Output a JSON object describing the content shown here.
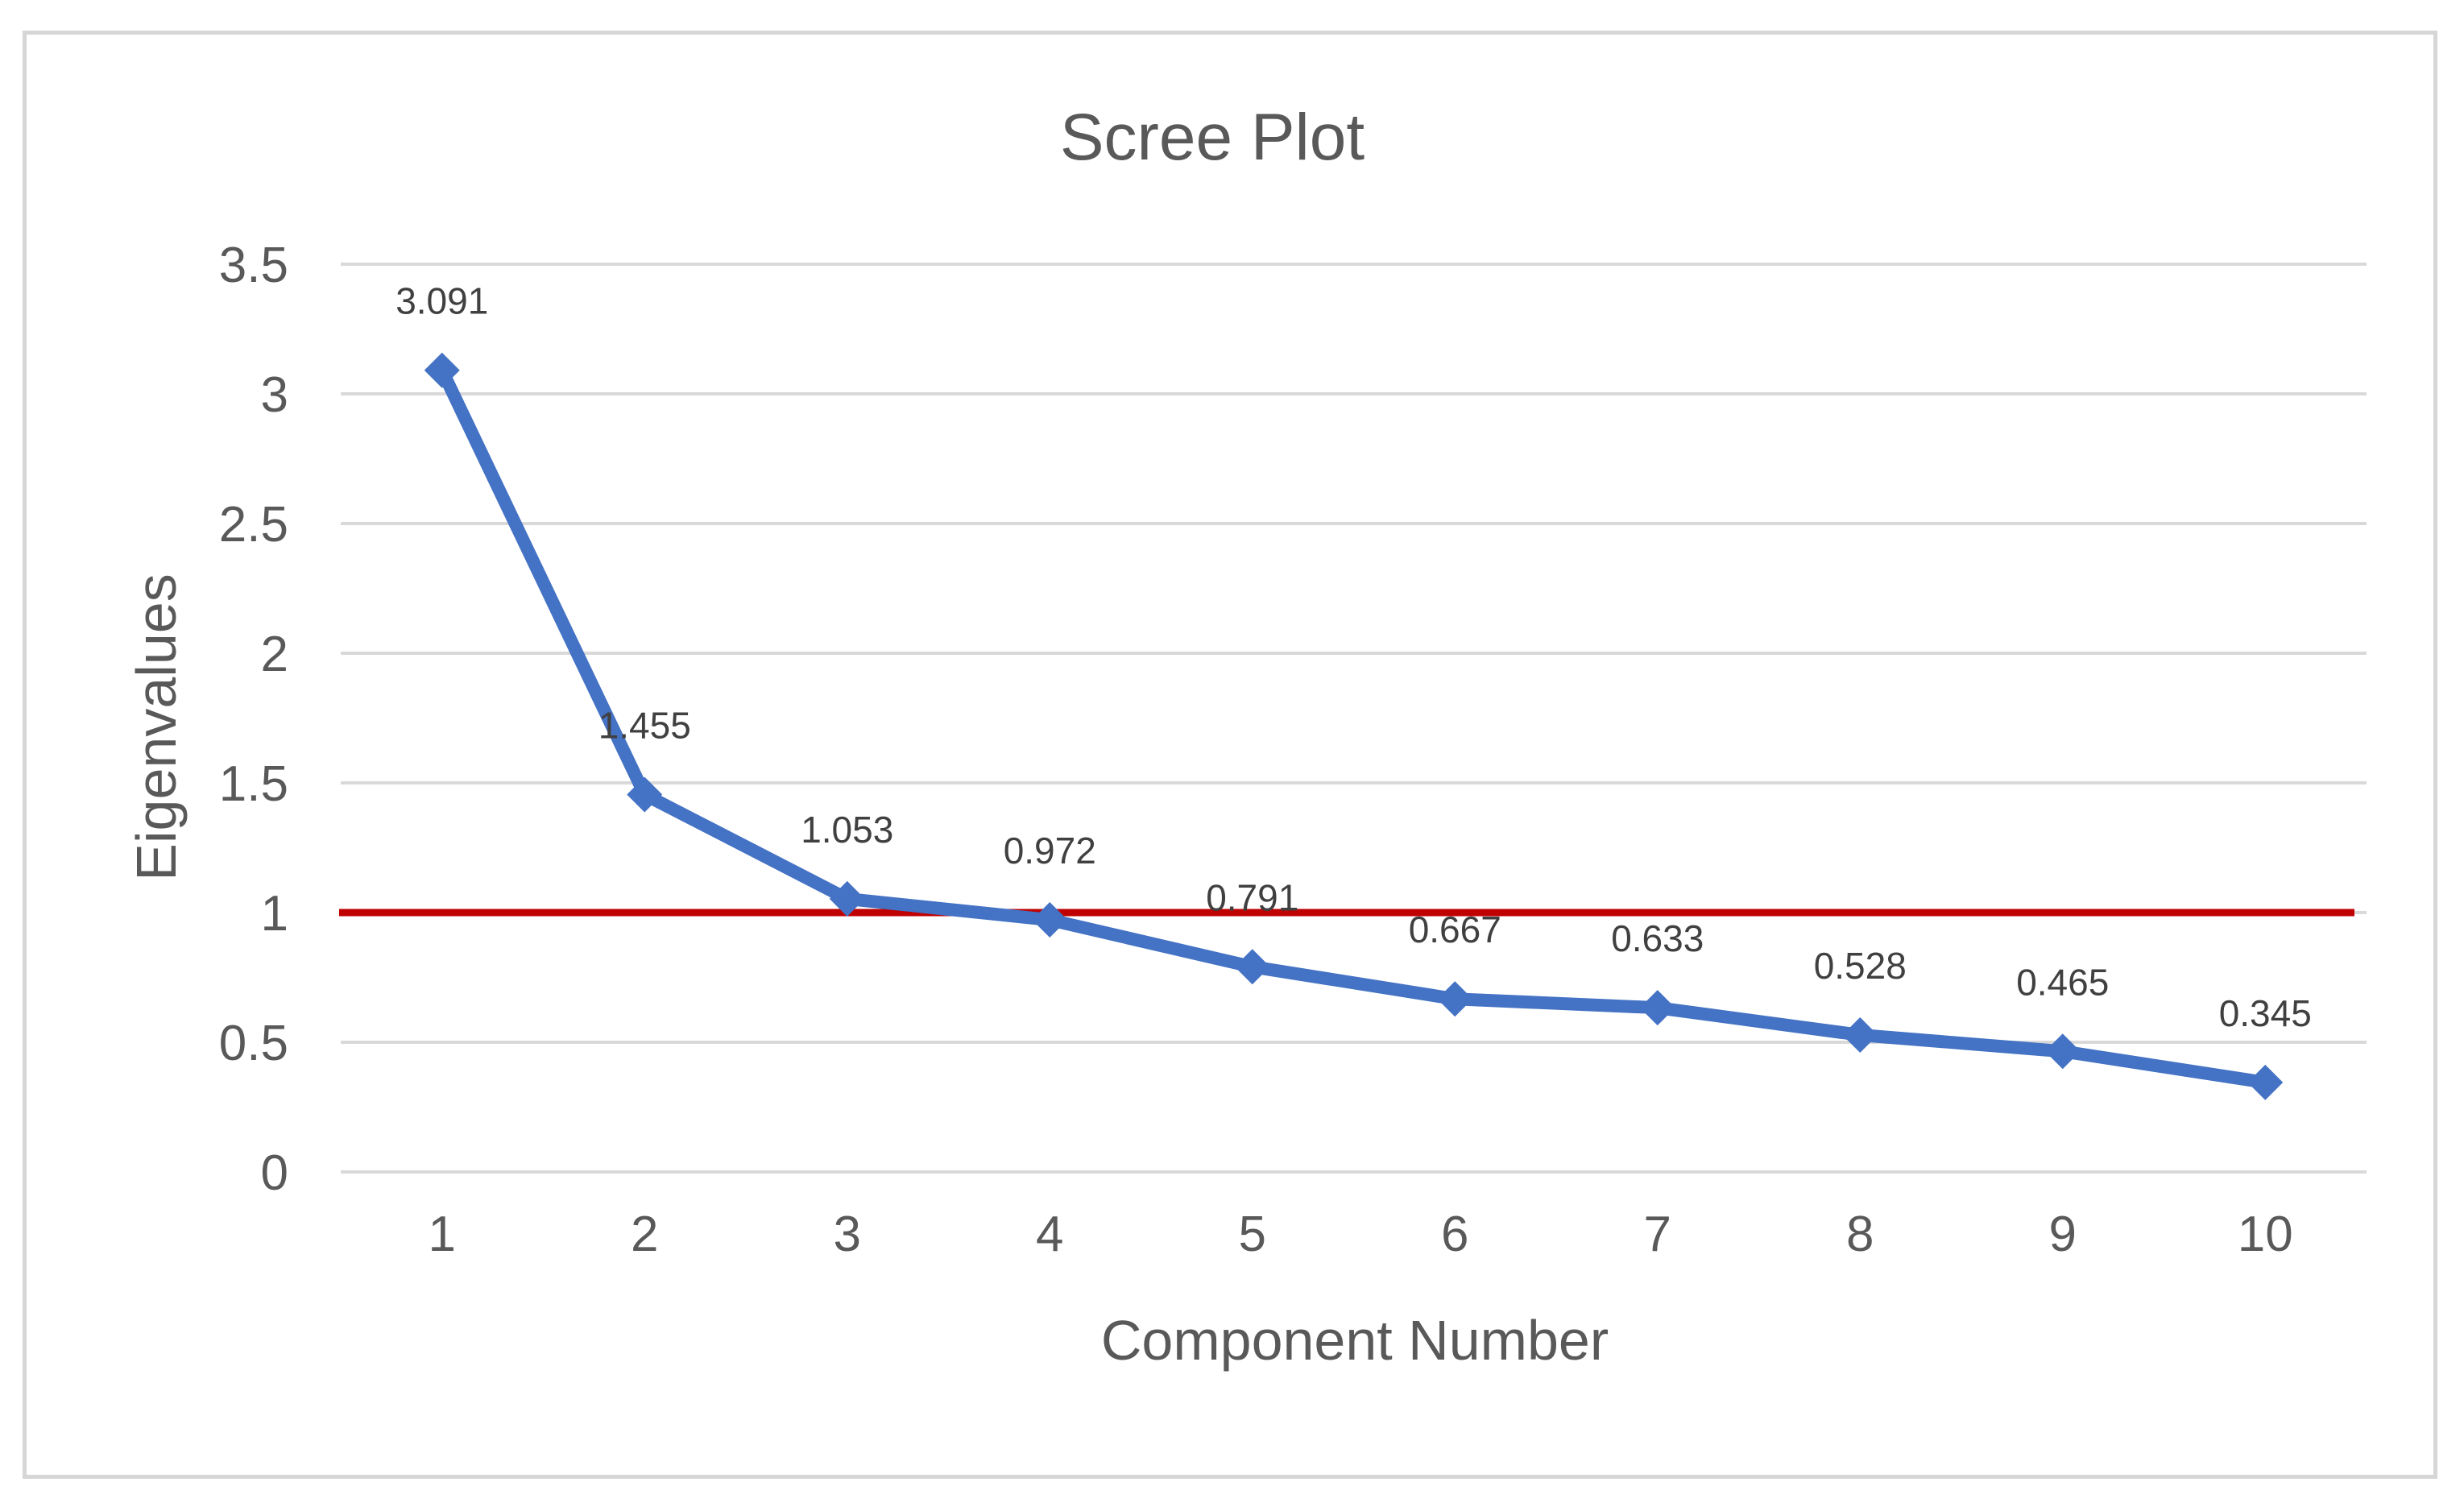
{
  "chart_data": {
    "type": "line",
    "title": "Scree Plot",
    "xlabel": "Component Number",
    "ylabel": "Eigenvalues",
    "categories": [
      "1",
      "2",
      "3",
      "4",
      "5",
      "6",
      "7",
      "8",
      "9",
      "10"
    ],
    "series": [
      {
        "values": [
          3.091,
          1.455,
          1.053,
          0.972,
          0.791,
          0.667,
          0.633,
          0.528,
          0.465,
          0.345
        ],
        "data_labels": [
          "3.091",
          "1.455",
          "1.053",
          "0.972",
          "0.791",
          "0.667",
          "0.633",
          "0.528",
          "0.465",
          "0.345"
        ],
        "color": "#4472c4",
        "marker": "diamond"
      }
    ],
    "reference_line": {
      "y": 1,
      "color": "#c00000"
    },
    "ylim": [
      0,
      3.5
    ],
    "yticks": [
      0,
      0.5,
      1,
      1.5,
      2,
      2.5,
      3,
      3.5
    ],
    "ytick_labels": [
      "0",
      "0.5",
      "1",
      "1.5",
      "2",
      "2.5",
      "3",
      "3.5"
    ],
    "grid": true,
    "grid_color": "#d9d9d9",
    "legend": "none"
  }
}
